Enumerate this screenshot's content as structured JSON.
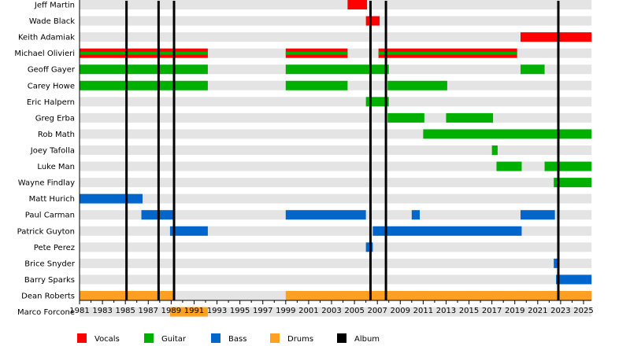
{
  "chart_data": {
    "type": "timeline",
    "xlim": [
      1981,
      2025.7
    ],
    "x_ticks": [
      1981,
      1983,
      1985,
      1987,
      1989,
      1991,
      1993,
      1995,
      1997,
      1999,
      2001,
      2003,
      2005,
      2007,
      2009,
      2011,
      2013,
      2015,
      2017,
      2019,
      2021,
      2023,
      2025
    ],
    "legend_position": "bottom",
    "roles": [
      {
        "name": "Vocals",
        "color": "#ff0000"
      },
      {
        "name": "Guitar",
        "color": "#00b000"
      },
      {
        "name": "Bass",
        "color": "#0066cc"
      },
      {
        "name": "Drums",
        "color": "#ffa020"
      },
      {
        "name": "Album",
        "color": "#000000"
      }
    ],
    "albums": [
      1985.1,
      1987.9,
      1989.25,
      2006.4,
      2007.75,
      2022.8
    ],
    "members": [
      {
        "name": "Jeff Martin",
        "bars": [
          {
            "role": "Vocals",
            "start": 2004.4,
            "end": 2006.1
          }
        ]
      },
      {
        "name": "Wade Black",
        "bars": [
          {
            "role": "Vocals",
            "start": 2006.0,
            "end": 2007.2
          }
        ]
      },
      {
        "name": "Keith Adamiak",
        "bars": [
          {
            "role": "Vocals",
            "start": 2019.5,
            "end": 2025.7
          }
        ]
      },
      {
        "name": "Michael Olivieri",
        "bars": [
          {
            "role": "Vocals+Guitar",
            "start": 1981,
            "end": 1992.2
          },
          {
            "role": "Vocals+Guitar",
            "start": 1999,
            "end": 2004.4
          },
          {
            "role": "Vocals+Guitar",
            "start": 2007.1,
            "end": 2019.2
          }
        ]
      },
      {
        "name": "Geoff Gayer",
        "bars": [
          {
            "role": "Guitar",
            "start": 1981,
            "end": 1992.2
          },
          {
            "role": "Guitar",
            "start": 1999,
            "end": 2008
          },
          {
            "role": "Guitar",
            "start": 2019.5,
            "end": 2021.6
          }
        ]
      },
      {
        "name": "Carey Howe",
        "bars": [
          {
            "role": "Guitar",
            "start": 1981,
            "end": 1992.2
          },
          {
            "role": "Guitar",
            "start": 1999,
            "end": 2004.4
          },
          {
            "role": "Guitar",
            "start": 2007.9,
            "end": 2013.1
          }
        ]
      },
      {
        "name": "Eric Halpern",
        "bars": [
          {
            "role": "Guitar",
            "start": 2006,
            "end": 2008
          }
        ]
      },
      {
        "name": "Greg Erba",
        "bars": [
          {
            "role": "Guitar",
            "start": 2007.9,
            "end": 2011.1
          },
          {
            "role": "Guitar",
            "start": 2013,
            "end": 2017.1
          }
        ]
      },
      {
        "name": "Rob Math",
        "bars": [
          {
            "role": "Guitar",
            "start": 2011,
            "end": 2025.7
          }
        ]
      },
      {
        "name": "Joey Tafolla",
        "bars": [
          {
            "role": "Guitar",
            "start": 2017,
            "end": 2017.5
          }
        ]
      },
      {
        "name": "Luke Man",
        "bars": [
          {
            "role": "Guitar",
            "start": 2017.4,
            "end": 2019.6
          },
          {
            "role": "Guitar",
            "start": 2021.6,
            "end": 2025.7
          }
        ]
      },
      {
        "name": "Wayne Findlay",
        "bars": [
          {
            "role": "Guitar",
            "start": 2022.4,
            "end": 2025.7
          }
        ]
      },
      {
        "name": "Matt Hurich",
        "bars": [
          {
            "role": "Bass",
            "start": 1981,
            "end": 1986.5
          }
        ]
      },
      {
        "name": "Paul Carman",
        "bars": [
          {
            "role": "Bass",
            "start": 1986.4,
            "end": 1989.25
          },
          {
            "role": "Bass",
            "start": 1999,
            "end": 2006
          },
          {
            "role": "Bass",
            "start": 2010,
            "end": 2010.7
          },
          {
            "role": "Bass",
            "start": 2019.5,
            "end": 2022.5
          }
        ]
      },
      {
        "name": "Patrick Guyton",
        "bars": [
          {
            "role": "Bass",
            "start": 1988.9,
            "end": 1992.2
          },
          {
            "role": "Bass",
            "start": 2006.6,
            "end": 2019.6
          }
        ]
      },
      {
        "name": "Pete Perez",
        "bars": [
          {
            "role": "Bass",
            "start": 2006,
            "end": 2006.6
          }
        ]
      },
      {
        "name": "Brice Snyder",
        "bars": [
          {
            "role": "Bass",
            "start": 2022.4,
            "end": 2022.7
          }
        ]
      },
      {
        "name": "Barry Sparks",
        "bars": [
          {
            "role": "Bass",
            "start": 2022.6,
            "end": 2025.7
          }
        ]
      },
      {
        "name": "Dean Roberts",
        "bars": [
          {
            "role": "Drums",
            "start": 1981,
            "end": 1989.25
          },
          {
            "role": "Drums",
            "start": 1999,
            "end": 2025.7
          }
        ]
      },
      {
        "name": "Marco Forcone",
        "bars": [
          {
            "role": "Drums",
            "start": 1988.9,
            "end": 1992.2
          }
        ]
      }
    ]
  }
}
